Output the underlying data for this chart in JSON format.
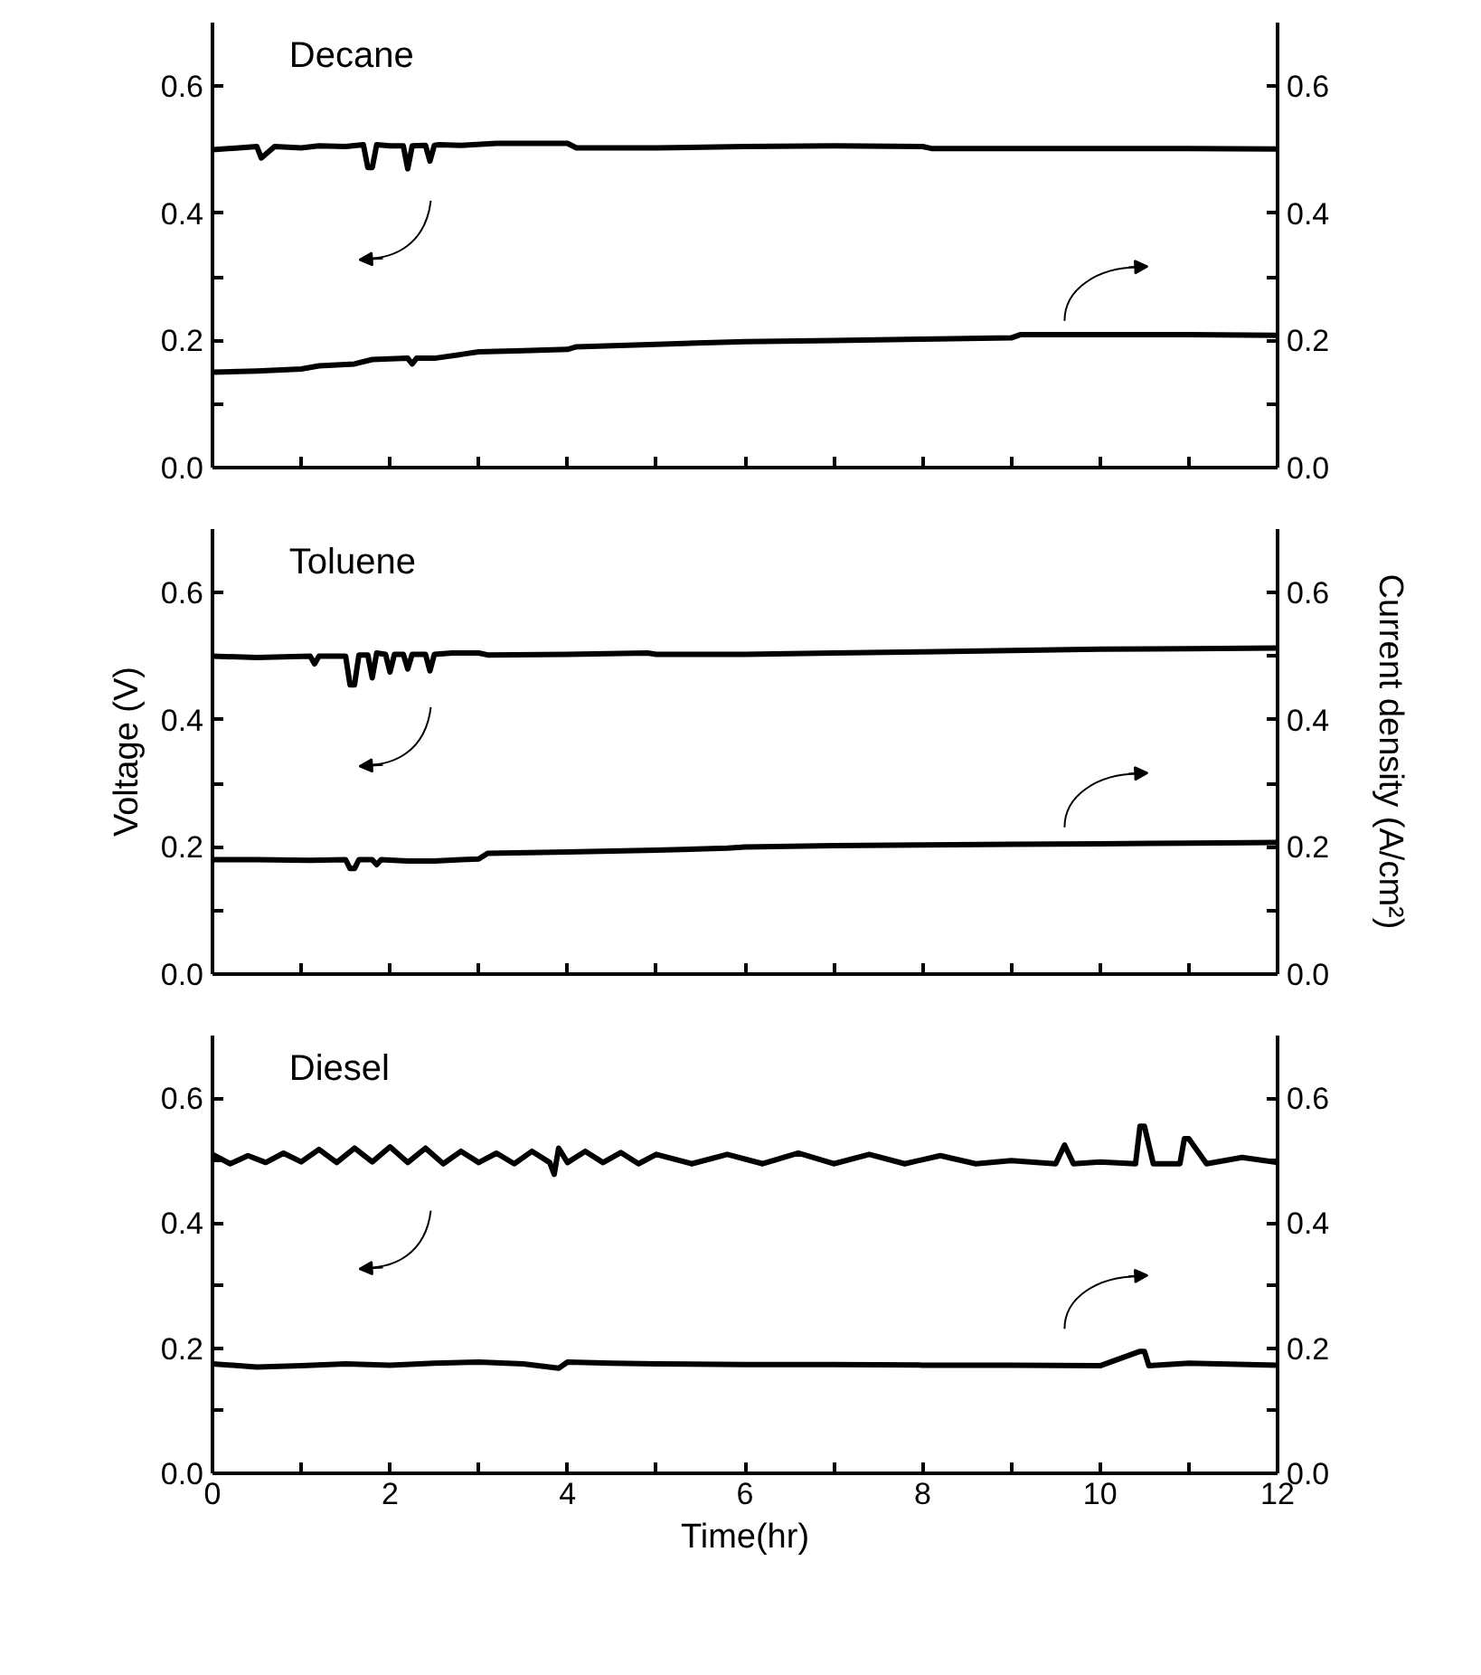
{
  "chart_data": [
    {
      "type": "line",
      "title": "Decane",
      "xlim": [
        0,
        12
      ],
      "xticks": [
        0,
        {
          "value": 1,
          "label": null
        },
        2,
        {
          "value": 3,
          "label": null
        },
        4,
        {
          "value": 5,
          "label": null
        },
        6,
        {
          "value": 7,
          "label": null
        },
        8,
        {
          "value": 9,
          "label": null
        },
        10,
        {
          "value": 11,
          "label": null
        },
        12
      ],
      "ylim": [
        0,
        0.7
      ],
      "yticks": [
        {
          "value": 0,
          "label": "0.0"
        },
        {
          "value": 0.1,
          "label": null
        },
        0.2,
        {
          "value": 0.3,
          "label": null
        },
        0.4,
        {
          "value": 0.5,
          "label": null
        },
        0.6
      ],
      "y2lim": [
        0,
        0.7
      ],
      "y2ticks": [
        {
          "value": 0,
          "label": "0.0"
        },
        {
          "value": 0.1,
          "label": null
        },
        0.2,
        {
          "value": 0.3,
          "label": null
        },
        0.4,
        {
          "value": 0.5,
          "label": null
        },
        0.6
      ],
      "tick_labels": "y",
      "series": [
        {
          "color": "#000000",
          "x": [
            0,
            0.3,
            0.5,
            0.55,
            0.7,
            1.0,
            1.2,
            1.5,
            1.7,
            1.75,
            1.8,
            1.85,
            2.0,
            2.15,
            2.2,
            2.25,
            2.4,
            2.45,
            2.5,
            2.55,
            2.8,
            3.2,
            3.6,
            4.0,
            4.1,
            5,
            6,
            7,
            8,
            8.1,
            9,
            10,
            11,
            12
          ],
          "values": [
            0.5,
            0.503,
            0.505,
            0.487,
            0.505,
            0.503,
            0.506,
            0.505,
            0.508,
            0.472,
            0.472,
            0.508,
            0.506,
            0.506,
            0.47,
            0.506,
            0.507,
            0.482,
            0.507,
            0.508,
            0.507,
            0.51,
            0.51,
            0.51,
            0.503,
            0.503,
            0.505,
            0.506,
            0.505,
            0.502,
            0.502,
            0.502,
            0.502,
            0.501
          ]
        },
        {
          "color": "#000000",
          "x": [
            0,
            0.5,
            1.0,
            1.2,
            1.6,
            1.8,
            2.2,
            2.25,
            2.3,
            2.5,
            2.8,
            3.0,
            3.5,
            4.0,
            4.1,
            5,
            6,
            7,
            8,
            9,
            9.1,
            10,
            11,
            12
          ],
          "values": [
            0.15,
            0.152,
            0.155,
            0.16,
            0.163,
            0.17,
            0.172,
            0.163,
            0.172,
            0.172,
            0.178,
            0.182,
            0.184,
            0.186,
            0.19,
            0.194,
            0.198,
            0.2,
            0.202,
            0.204,
            0.209,
            0.209,
            0.209,
            0.208
          ]
        }
      ]
    },
    {
      "type": "line",
      "title": "Toluene",
      "ylabel": "Voltage (V)",
      "y2label": "Current density (A/cm²)",
      "xlim": [
        0,
        12
      ],
      "xticks": [
        0,
        {
          "value": 1,
          "label": null
        },
        2,
        {
          "value": 3,
          "label": null
        },
        4,
        {
          "value": 5,
          "label": null
        },
        6,
        {
          "value": 7,
          "label": null
        },
        8,
        {
          "value": 9,
          "label": null
        },
        10,
        {
          "value": 11,
          "label": null
        },
        12
      ],
      "ylim": [
        0,
        0.7
      ],
      "yticks": [
        {
          "value": 0,
          "label": "0.0"
        },
        {
          "value": 0.1,
          "label": null
        },
        0.2,
        {
          "value": 0.3,
          "label": null
        },
        0.4,
        {
          "value": 0.5,
          "label": null
        },
        0.6
      ],
      "y2lim": [
        0,
        0.7
      ],
      "y2ticks": [
        {
          "value": 0,
          "label": "0.0"
        },
        {
          "value": 0.1,
          "label": null
        },
        0.2,
        {
          "value": 0.3,
          "label": null
        },
        0.4,
        {
          "value": 0.5,
          "label": null
        },
        0.6
      ],
      "tick_labels": "y",
      "series": [
        {
          "color": "#000000",
          "x": [
            0,
            0.5,
            1.1,
            1.15,
            1.2,
            1.5,
            1.55,
            1.6,
            1.65,
            1.75,
            1.8,
            1.85,
            1.95,
            2.0,
            2.05,
            2.15,
            2.2,
            2.25,
            2.4,
            2.45,
            2.5,
            2.7,
            3.0,
            3.1,
            4,
            4.9,
            5,
            6,
            7,
            8,
            9,
            10,
            11,
            12
          ],
          "values": [
            0.5,
            0.498,
            0.5,
            0.488,
            0.5,
            0.5,
            0.455,
            0.455,
            0.502,
            0.502,
            0.466,
            0.505,
            0.503,
            0.475,
            0.503,
            0.503,
            0.48,
            0.503,
            0.503,
            0.477,
            0.503,
            0.505,
            0.505,
            0.502,
            0.503,
            0.505,
            0.503,
            0.503,
            0.505,
            0.507,
            0.509,
            0.511,
            0.512,
            0.513
          ]
        },
        {
          "color": "#000000",
          "x": [
            0,
            0.5,
            1.1,
            1.5,
            1.55,
            1.6,
            1.65,
            1.8,
            1.85,
            1.9,
            2.2,
            2.5,
            2.8,
            3.0,
            3.1,
            4,
            5,
            5.8,
            6,
            7,
            8,
            9,
            10,
            11,
            12
          ],
          "values": [
            0.18,
            0.18,
            0.179,
            0.18,
            0.166,
            0.166,
            0.18,
            0.18,
            0.172,
            0.18,
            0.178,
            0.178,
            0.18,
            0.181,
            0.19,
            0.192,
            0.195,
            0.198,
            0.2,
            0.202,
            0.203,
            0.204,
            0.205,
            0.206,
            0.207
          ]
        }
      ]
    },
    {
      "type": "line",
      "title": "Diesel",
      "xlabel": "Time(hr)",
      "xlim": [
        0,
        12
      ],
      "xticks": [
        0,
        {
          "value": 1,
          "label": null
        },
        2,
        {
          "value": 3,
          "label": null
        },
        4,
        {
          "value": 5,
          "label": null
        },
        6,
        {
          "value": 7,
          "label": null
        },
        8,
        {
          "value": 9,
          "label": null
        },
        10,
        {
          "value": 11,
          "label": null
        },
        12
      ],
      "ylim": [
        0,
        0.7
      ],
      "yticks": [
        {
          "value": 0,
          "label": "0.0"
        },
        {
          "value": 0.1,
          "label": null
        },
        0.2,
        {
          "value": 0.3,
          "label": null
        },
        0.4,
        {
          "value": 0.5,
          "label": null
        },
        0.6
      ],
      "y2lim": [
        0,
        0.7
      ],
      "y2ticks": [
        {
          "value": 0,
          "label": "0.0"
        },
        {
          "value": 0.1,
          "label": null
        },
        0.2,
        {
          "value": 0.3,
          "label": null
        },
        0.4,
        {
          "value": 0.5,
          "label": null
        },
        0.6
      ],
      "series": [
        {
          "color": "#000000",
          "x": [
            0,
            0.2,
            0.4,
            0.6,
            0.8,
            1.0,
            1.2,
            1.4,
            1.6,
            1.8,
            2.0,
            2.2,
            2.4,
            2.6,
            2.8,
            3.0,
            3.2,
            3.4,
            3.6,
            3.8,
            3.85,
            3.9,
            4.0,
            4.2,
            4.4,
            4.6,
            4.8,
            5.0,
            5.4,
            5.8,
            6.2,
            6.6,
            7.0,
            7.4,
            7.8,
            8.2,
            8.6,
            9.0,
            9.5,
            9.6,
            9.7,
            10.0,
            10.4,
            10.45,
            10.5,
            10.6,
            10.9,
            10.95,
            11.0,
            11.2,
            11.6,
            12
          ],
          "values": [
            0.51,
            0.495,
            0.508,
            0.497,
            0.512,
            0.498,
            0.518,
            0.497,
            0.52,
            0.498,
            0.522,
            0.497,
            0.52,
            0.495,
            0.515,
            0.497,
            0.512,
            0.495,
            0.515,
            0.497,
            0.478,
            0.52,
            0.497,
            0.515,
            0.497,
            0.513,
            0.495,
            0.51,
            0.495,
            0.51,
            0.495,
            0.512,
            0.495,
            0.51,
            0.495,
            0.508,
            0.495,
            0.5,
            0.495,
            0.525,
            0.495,
            0.498,
            0.495,
            0.555,
            0.555,
            0.495,
            0.495,
            0.535,
            0.535,
            0.495,
            0.505,
            0.497
          ]
        },
        {
          "color": "#000000",
          "x": [
            0,
            0.5,
            1.0,
            1.5,
            2.0,
            2.5,
            3.0,
            3.5,
            3.9,
            4.0,
            4.5,
            5,
            6,
            7,
            8,
            9,
            10,
            10.45,
            10.5,
            10.55,
            11,
            12
          ],
          "values": [
            0.175,
            0.17,
            0.172,
            0.175,
            0.173,
            0.176,
            0.178,
            0.175,
            0.168,
            0.178,
            0.176,
            0.175,
            0.174,
            0.174,
            0.173,
            0.173,
            0.172,
            0.195,
            0.195,
            0.172,
            0.176,
            0.173
          ]
        }
      ]
    }
  ]
}
